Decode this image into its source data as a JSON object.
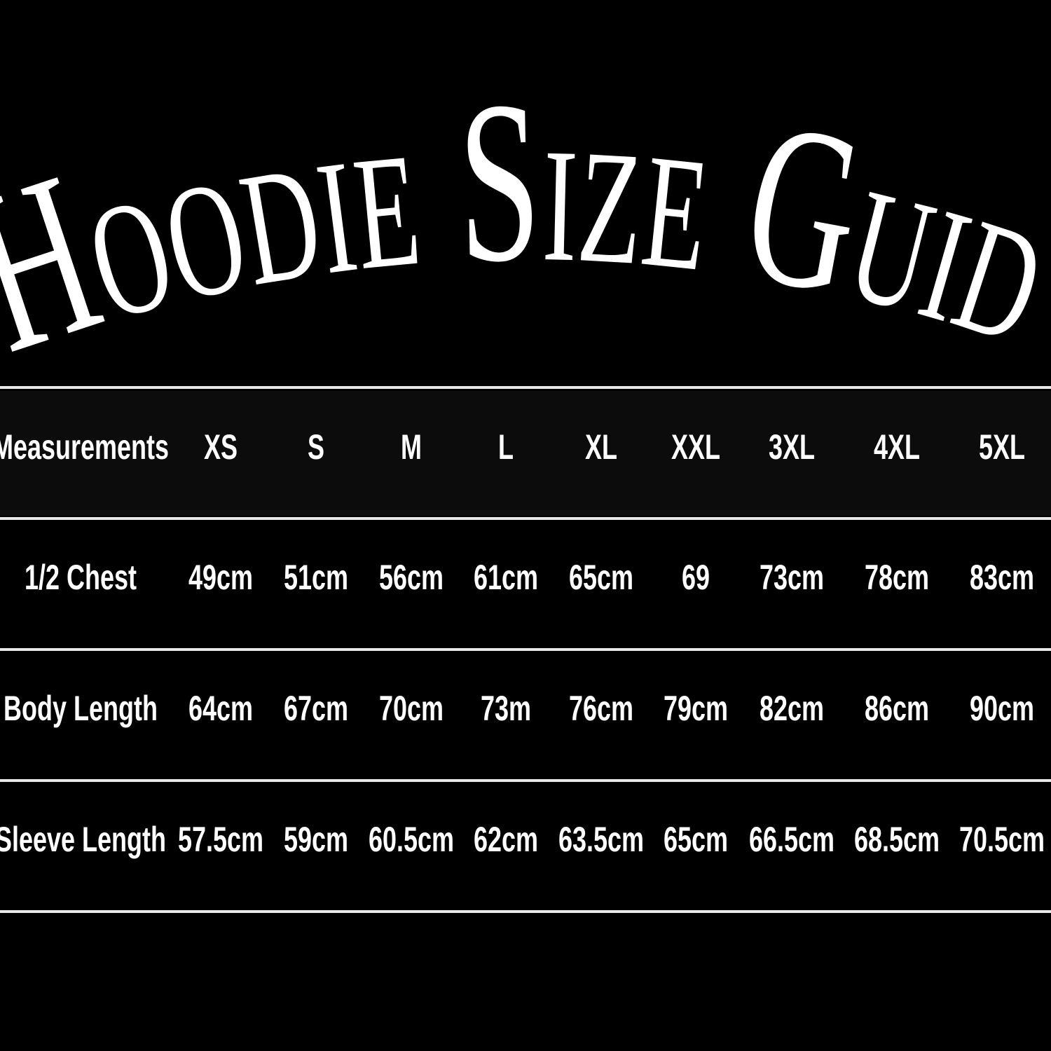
{
  "title": "Hoodie Size Guide",
  "table": {
    "header": [
      "Measurements",
      "XS",
      "S",
      "M",
      "L",
      "XL",
      "XXL",
      "3XL",
      "4XL",
      "5XL"
    ],
    "rows": [
      [
        "1/2 Chest",
        "49cm",
        "51cm",
        "56cm",
        "61cm",
        "65cm",
        "69",
        "73cm",
        "78cm",
        "83cm"
      ],
      [
        "Body Length",
        "64cm",
        "67cm",
        "70cm",
        "73m",
        "76cm",
        "79cm",
        "82cm",
        "86cm",
        "90cm"
      ],
      [
        "Sleeve Length",
        "57.5cm",
        "59cm",
        "60.5cm",
        "62cm",
        "63.5cm",
        "65cm",
        "66.5cm",
        "68.5cm",
        "70.5cm"
      ]
    ]
  }
}
